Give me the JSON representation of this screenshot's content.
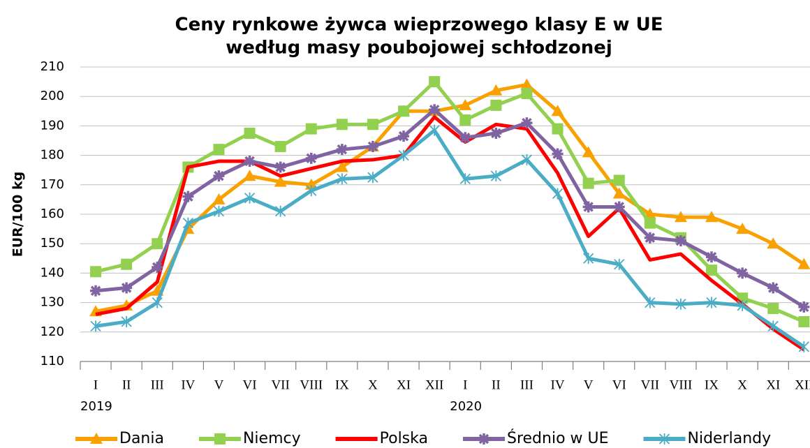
{
  "chart_data": {
    "type": "line",
    "title": [
      "Ceny rynkowe żywca wieprzowego klasy E w UE",
      "według masy poubojowej schłodzonej"
    ],
    "y_label": "EUR/100 kg",
    "categories": [
      "I",
      "II",
      "III",
      "IV",
      "V",
      "VI",
      "VII",
      "VIII",
      "IX",
      "X",
      "XI",
      "XII",
      "I",
      "II",
      "III",
      "IV",
      "V",
      "VI",
      "VII",
      "VIII",
      "IX",
      "X",
      "XI",
      "XII"
    ],
    "years": [
      "2019",
      "2020"
    ],
    "ylim": [
      110,
      210
    ],
    "yticks": [
      110,
      120,
      130,
      140,
      150,
      160,
      170,
      180,
      190,
      200,
      210
    ],
    "grid": true,
    "legend": "bottom",
    "series": [
      {
        "name": "Dania",
        "color": "#f8a100",
        "marker": "triangle",
        "values": [
          127,
          129,
          134,
          155,
          165,
          173,
          171,
          170,
          176,
          183,
          195,
          195,
          197,
          202,
          204,
          195,
          181,
          167,
          160,
          159,
          159,
          155,
          150,
          143
        ]
      },
      {
        "name": "Niemcy",
        "color": "#92d050",
        "marker": "square",
        "values": [
          140.5,
          143,
          150,
          176,
          182,
          187.5,
          183,
          189,
          190.5,
          190.5,
          195,
          205,
          192,
          197,
          201,
          189,
          170.5,
          171.5,
          157,
          152,
          141,
          131.5,
          128,
          123.5
        ]
      },
      {
        "name": "Polska",
        "color": "#ff0000",
        "marker": "none",
        "values": [
          126,
          128,
          137,
          176,
          178,
          178,
          173,
          175.5,
          178,
          178.5,
          180,
          193,
          184.5,
          190.5,
          189,
          174,
          152.5,
          162,
          144.5,
          146.5,
          137.5,
          129.5,
          121,
          114
        ]
      },
      {
        "name": "Średnio w UE",
        "color": "#8064a2",
        "marker": "star",
        "values": [
          134,
          135,
          142,
          166,
          173,
          178,
          176,
          179,
          182,
          183,
          186.5,
          195.5,
          186,
          187.5,
          191,
          180.5,
          162.5,
          162.5,
          152,
          151,
          145.5,
          140,
          135,
          128.5
        ]
      },
      {
        "name": "Niderlandy",
        "color": "#4bacc6",
        "marker": "x",
        "values": [
          122,
          123.5,
          130,
          157,
          161,
          165.5,
          161,
          168,
          172,
          172.5,
          180,
          188.5,
          172,
          173,
          178.5,
          167,
          145,
          143,
          130,
          129.5,
          130,
          129,
          122,
          115
        ]
      }
    ]
  }
}
